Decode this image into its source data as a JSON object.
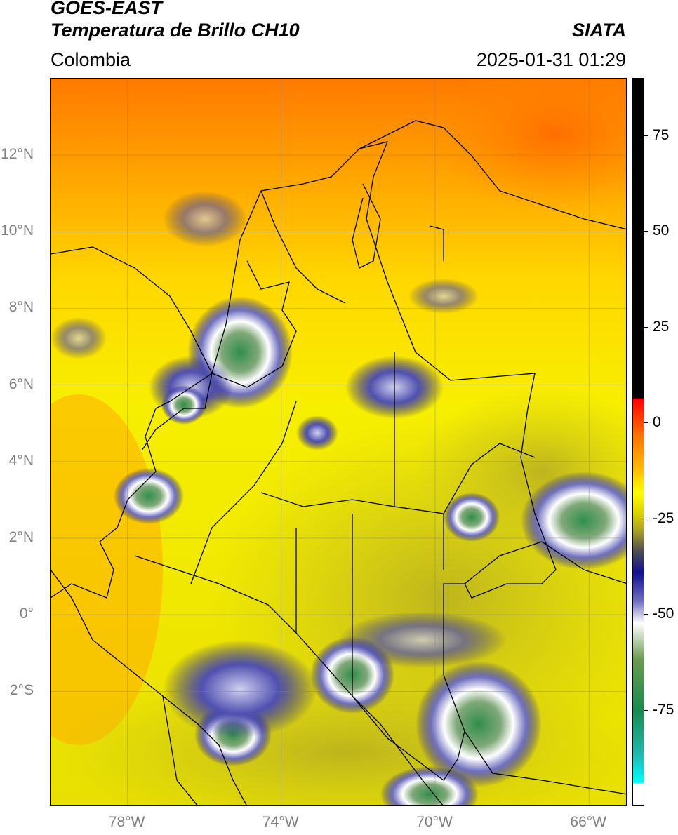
{
  "header": {
    "satellite": "GOES-EAST",
    "product": "Temperatura de Brillo CH10",
    "agency": "SIATA",
    "region": "Colombia",
    "datetime": "2025-01-31 01:29"
  },
  "map": {
    "lon_range": [
      -80,
      -65
    ],
    "lat_range": [
      -5,
      14
    ],
    "lat_ticks": [
      {
        "value": 12,
        "label": "12°N"
      },
      {
        "value": 10,
        "label": "10°N"
      },
      {
        "value": 8,
        "label": "8°N"
      },
      {
        "value": 6,
        "label": "6°N"
      },
      {
        "value": 4,
        "label": "4°N"
      },
      {
        "value": 2,
        "label": "2°N"
      },
      {
        "value": 0,
        "label": "0°"
      },
      {
        "value": -2,
        "label": "2°S"
      }
    ],
    "lon_ticks": [
      {
        "value": -78,
        "label": "78°W"
      },
      {
        "value": -74,
        "label": "74°W"
      },
      {
        "value": -70,
        "label": "70°W"
      },
      {
        "value": -66,
        "label": "66°W"
      }
    ],
    "grid": true,
    "colors": {
      "warm": "#ff6a00",
      "mid": "#ffb000",
      "yellow": "#f5f000",
      "olive": "#c8bf20",
      "cold_blue": "#16168c",
      "cold_white": "#ffffff",
      "very_cold_green": "#2f8f4a",
      "borders": "#000000"
    }
  },
  "colorbar": {
    "ticks": [
      {
        "value": 75,
        "label": "75"
      },
      {
        "value": 50,
        "label": "50"
      },
      {
        "value": 25,
        "label": "25"
      },
      {
        "value": 0,
        "label": "0"
      },
      {
        "value": -25,
        "label": "-25"
      },
      {
        "value": -50,
        "label": "-50"
      },
      {
        "value": -75,
        "label": "-75"
      }
    ],
    "range": [
      -100,
      90
    ]
  }
}
